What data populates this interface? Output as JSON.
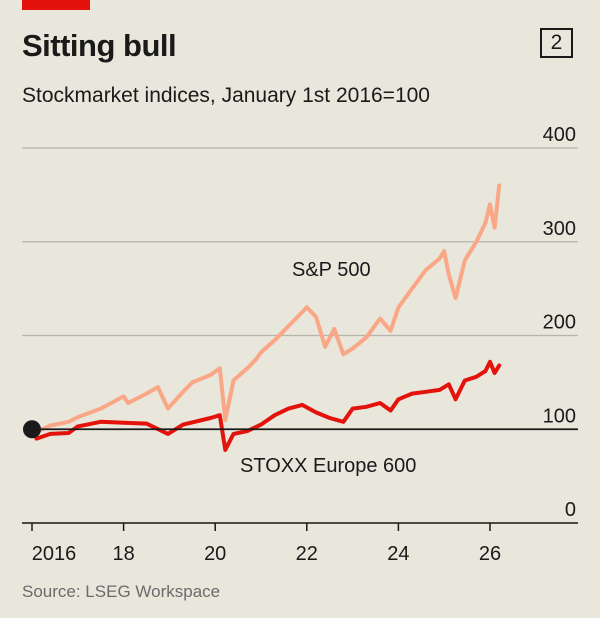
{
  "header": {
    "title": "Sitting bull",
    "badge": "2",
    "subtitle": "Stockmarket indices, January 1st 2016=100"
  },
  "footer": {
    "source": "Source: LSEG Workspace"
  },
  "colors": {
    "accent": "#e3120b",
    "sp500": "#f9a787",
    "stoxx": "#e3120b",
    "grid": "#b7b4ab",
    "baseline": "#1a1a1a",
    "background": "#e9e6db"
  },
  "chart_data": {
    "type": "line",
    "title": "Sitting bull",
    "subtitle": "Stockmarket indices, January 1st 2016=100",
    "ylim": [
      0,
      400
    ],
    "yticks": [
      0,
      100,
      200,
      300,
      400
    ],
    "ytick_labels": [
      "0",
      "100",
      "200",
      "300",
      "400"
    ],
    "xlim": [
      2016.0,
      2026.3
    ],
    "xticks": [
      2016,
      2018,
      2020,
      2022,
      2024,
      2026
    ],
    "xtick_labels": [
      "2016",
      "18",
      "20",
      "22",
      "24",
      "26"
    ],
    "baseline": 100,
    "grid": true,
    "series": [
      {
        "name": "S&P 500",
        "x": [
          2016.0,
          2016.1,
          2016.4,
          2016.8,
          2017.0,
          2017.5,
          2018.0,
          2018.1,
          2018.5,
          2018.75,
          2018.97,
          2019.3,
          2019.5,
          2019.9,
          2020.1,
          2020.22,
          2020.4,
          2020.7,
          2020.9,
          2021.0,
          2021.3,
          2021.6,
          2021.9,
          2022.0,
          2022.2,
          2022.4,
          2022.6,
          2022.8,
          2023.0,
          2023.3,
          2023.6,
          2023.83,
          2024.0,
          2024.3,
          2024.6,
          2024.9,
          2025.0,
          2025.1,
          2025.25,
          2025.45,
          2025.7,
          2025.9,
          2026.0,
          2026.1,
          2026.2
        ],
        "values": [
          100,
          97,
          104,
          108,
          113,
          122,
          135,
          128,
          138,
          145,
          122,
          140,
          150,
          158,
          165,
          110,
          152,
          165,
          175,
          182,
          195,
          210,
          225,
          230,
          220,
          188,
          207,
          180,
          186,
          198,
          218,
          205,
          230,
          250,
          270,
          282,
          290,
          265,
          240,
          280,
          300,
          320,
          340,
          315,
          360
        ]
      },
      {
        "name": "STOXX Europe 600",
        "x": [
          2016.0,
          2016.1,
          2016.4,
          2016.8,
          2017.0,
          2017.5,
          2018.0,
          2018.5,
          2018.97,
          2019.3,
          2019.9,
          2020.1,
          2020.22,
          2020.4,
          2020.7,
          2021.0,
          2021.3,
          2021.6,
          2021.9,
          2022.2,
          2022.5,
          2022.8,
          2023.0,
          2023.3,
          2023.6,
          2023.83,
          2024.0,
          2024.3,
          2024.6,
          2024.9,
          2025.1,
          2025.25,
          2025.45,
          2025.7,
          2025.9,
          2026.0,
          2026.1,
          2026.2
        ],
        "values": [
          100,
          90,
          95,
          96,
          103,
          108,
          107,
          106,
          95,
          105,
          112,
          115,
          78,
          95,
          98,
          105,
          115,
          122,
          126,
          118,
          112,
          108,
          122,
          124,
          128,
          120,
          132,
          138,
          140,
          142,
          148,
          132,
          152,
          156,
          162,
          172,
          160,
          168
        ]
      }
    ]
  }
}
